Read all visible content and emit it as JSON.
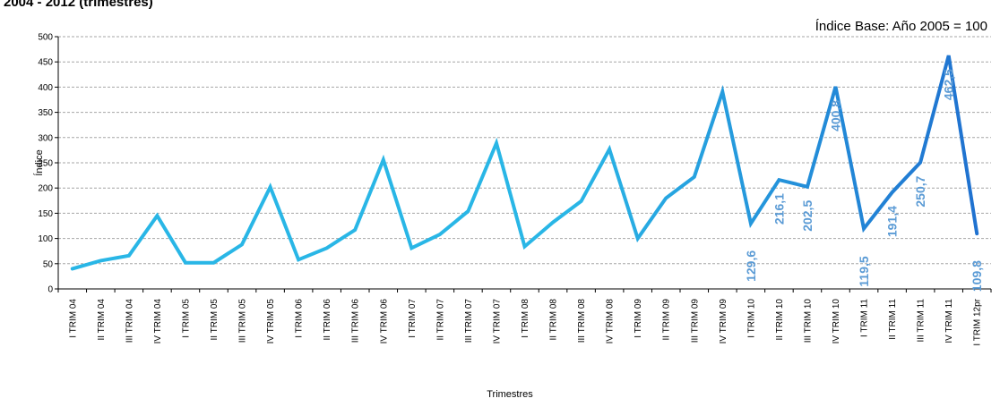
{
  "header": {
    "title": "2004 - 2012 (trimestres)",
    "base_note": "Índice Base: Año 2005 = 100"
  },
  "colors": {
    "line_light": "#29b6e6",
    "line_dark": "#1f6fcf",
    "label": "#5b9bd5",
    "grid": "#a6a6a6",
    "axis": "#000000"
  },
  "chart_data": {
    "type": "line",
    "title": "2004 - 2012 (trimestres)",
    "xlabel": "Trimestres",
    "ylabel": "Índice",
    "ylim": [
      0,
      500
    ],
    "y_ticks": [
      "0",
      "50",
      "100",
      "150",
      "200",
      "250",
      "300",
      "350",
      "400",
      "450",
      "500"
    ],
    "grid": true,
    "categories": [
      "I TRIM 04",
      "II TRIM 04",
      "III TRIM 04",
      "IV TRIM 04",
      "I TRIM 05",
      "II TRIM 05",
      "III TRIM 05",
      "IV TRIM 05",
      "I TRIM 06",
      "II TRIM 06",
      "III TRIM 06",
      "IV TRIM 06",
      "I TRIM 07",
      "II TRIM 07",
      "III TRIM 07",
      "IV TRIM 07",
      "I TRIM 08",
      "II TRIM 08",
      "III TRIM 08",
      "IV TRIM 08",
      "I TRIM 09",
      "II TRIM 09",
      "III TRIM 09",
      "IV TRIM 09",
      "I TRIM 10",
      "II TRIM 10",
      "III TRIM 10",
      "IV TRIM 10",
      "I TRIM 11",
      "II TRIM 11",
      "III TRIM 11",
      "IV TRIM 11",
      "I TRIM 12pr"
    ],
    "values": [
      40,
      56,
      66,
      145,
      52,
      52,
      88,
      202,
      58,
      81,
      117,
      256,
      81,
      108,
      154,
      289,
      84,
      132,
      174,
      277,
      100,
      180,
      222,
      391,
      129.6,
      216.1,
      202.5,
      400.8,
      119.5,
      191.4,
      250.7,
      462.5,
      109.8
    ],
    "data_labels": [
      {
        "index": 24,
        "text": "129,6"
      },
      {
        "index": 25,
        "text": "216,1"
      },
      {
        "index": 26,
        "text": "202,5"
      },
      {
        "index": 27,
        "text": "400,8"
      },
      {
        "index": 28,
        "text": "119,5"
      },
      {
        "index": 29,
        "text": "191,4"
      },
      {
        "index": 30,
        "text": "250,7"
      },
      {
        "index": 31,
        "text": "462,5"
      },
      {
        "index": 32,
        "text": "109,8"
      }
    ]
  }
}
